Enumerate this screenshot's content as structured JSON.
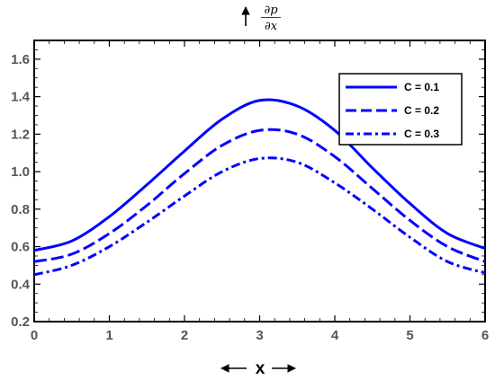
{
  "chart_data": {
    "type": "line",
    "title": "",
    "xlabel": "x",
    "ylabel": {
      "numerator": "∂p",
      "denominator": "∂x"
    },
    "xlim": [
      0,
      6
    ],
    "ylim": [
      0.2,
      1.7
    ],
    "x_ticks": [
      "0",
      "1",
      "2",
      "3",
      "4",
      "5",
      "6"
    ],
    "y_ticks": [
      "0.2",
      "0.4",
      "0.6",
      "0.8",
      "1.0",
      "1.2",
      "1.4",
      "1.6"
    ],
    "grid": false,
    "legend": "top-right",
    "line_color": "#0000FF",
    "x": [
      0,
      0.5,
      1,
      1.5,
      2,
      2.5,
      3,
      3.5,
      4,
      4.5,
      5,
      5.5,
      6
    ],
    "series": [
      {
        "name": "C = 0.1",
        "style": "solid",
        "values": [
          0.58,
          0.63,
          0.76,
          0.93,
          1.11,
          1.28,
          1.38,
          1.35,
          1.22,
          1.02,
          0.83,
          0.67,
          0.59
        ]
      },
      {
        "name": "C = 0.2",
        "style": "dashed",
        "values": [
          0.52,
          0.56,
          0.67,
          0.82,
          0.99,
          1.14,
          1.22,
          1.2,
          1.08,
          0.91,
          0.74,
          0.6,
          0.52
        ]
      },
      {
        "name": "C = 0.3",
        "style": "dash-dot",
        "values": [
          0.45,
          0.5,
          0.6,
          0.73,
          0.87,
          1.0,
          1.07,
          1.05,
          0.94,
          0.8,
          0.65,
          0.52,
          0.46
        ]
      }
    ]
  }
}
